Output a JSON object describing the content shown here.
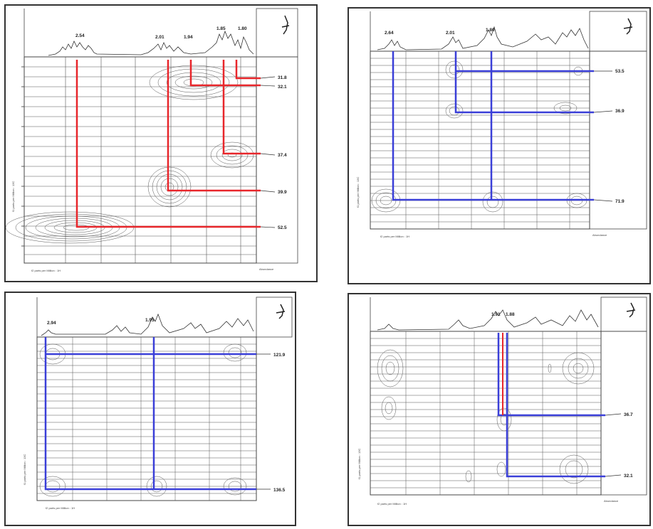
{
  "panels": [
    {
      "id": "p1",
      "top_labels": [
        "2.54",
        "2.01",
        "1.94",
        "1.85",
        "1.80"
      ],
      "right_labels": [
        "31.8",
        "32.1",
        "37.4",
        "39.9",
        "52.5"
      ],
      "line_color": "#e8262b"
    },
    {
      "id": "p2",
      "top_labels": [
        "2.64",
        "2.01",
        "1.80"
      ],
      "right_labels": [
        "53.5",
        "36.9",
        "71.9"
      ],
      "line_color": "#3a3fd8"
    },
    {
      "id": "p3",
      "top_labels": [
        "2.94",
        "1.95"
      ],
      "right_labels": [
        "121.9",
        "136.5"
      ],
      "line_color": "#3a3fd8"
    },
    {
      "id": "p4",
      "top_labels": [
        "1.91",
        "1.88"
      ],
      "right_labels": [
        "36.7",
        "32.1"
      ],
      "line_color": "#3a3fd8",
      "accent_color": "#e8262b"
    }
  ],
  "axis_texts": {
    "x_axis": "f2 parts per Million : 1H",
    "y_axis": "f1 parts per Million : 13C",
    "abundance": "Abundance"
  }
}
